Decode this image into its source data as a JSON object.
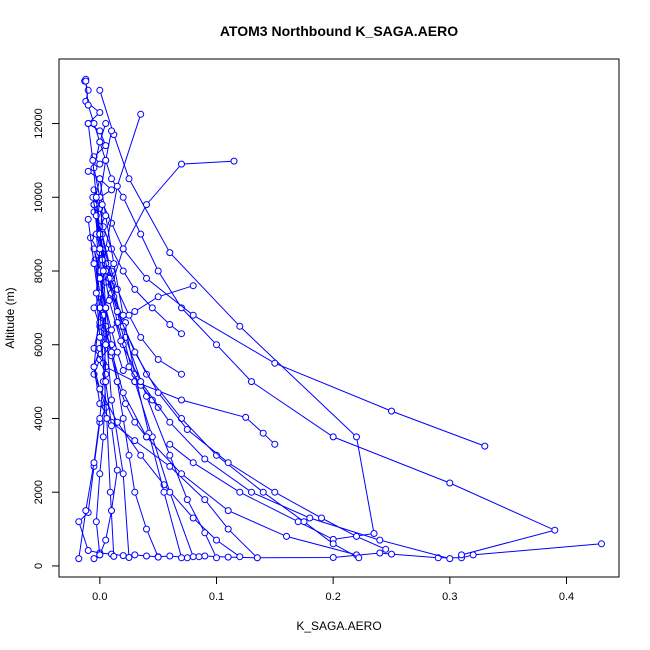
{
  "chart_data": {
    "type": "line",
    "title": "ATOM3 Northbound K_SAGA.AERO",
    "xlabel": "K_SAGA.AERO",
    "ylabel": "Altitude (m)",
    "xlim": [
      -0.035,
      0.445
    ],
    "ylim": [
      -300,
      13750
    ],
    "x_ticks": [
      0.0,
      0.1,
      0.2,
      0.3,
      0.4
    ],
    "x_tick_labels": [
      "0.0",
      "0.1",
      "0.2",
      "0.3",
      "0.4"
    ],
    "y_ticks": [
      0,
      2000,
      4000,
      6000,
      8000,
      10000,
      12000
    ],
    "y_tick_labels": [
      "0",
      "2000",
      "4000",
      "6000",
      "8000",
      "10000",
      "12000"
    ],
    "grid": false,
    "legend": "none",
    "color": "#0000ff",
    "marker": "open-circle",
    "series": [
      {
        "x": [
          0.43,
          0.32,
          0.31,
          0.29,
          0.25,
          0.24,
          0.2,
          0.135,
          0.11,
          0.09,
          0.085,
          0.075,
          0.06,
          0.05,
          0.04,
          0.03,
          0.02,
          0.01,
          0.0,
          -0.01,
          -0.018,
          -0.01,
          -0.005,
          0.0,
          0.005,
          0.0,
          -0.005,
          0.0,
          0.01,
          0.0,
          -0.005,
          0.0,
          0.005,
          0.01,
          0.0,
          -0.008,
          0.0,
          0.005,
          -0.005,
          0.0,
          0.01,
          0.0,
          -0.01,
          0.0,
          -0.005,
          0.005,
          0.0,
          -0.01,
          0.0,
          -0.012,
          -0.01,
          -0.013,
          -0.012
        ],
        "y": [
          600,
          300,
          220,
          220,
          320,
          350,
          230,
          220,
          240,
          270,
          250,
          220,
          270,
          250,
          270,
          300,
          280,
          320,
          350,
          420,
          1200,
          1450,
          2700,
          3900,
          4300,
          4800,
          5200,
          5600,
          6000,
          6500,
          7000,
          7300,
          7700,
          8000,
          8500,
          8900,
          9200,
          9500,
          9800,
          10000,
          10200,
          10500,
          10700,
          10900,
          11100,
          11400,
          11800,
          12000,
          12300,
          12600,
          12900,
          13150,
          13200
        ]
      },
      {
        "x": [
          -0.012,
          -0.01,
          -0.005,
          0.0,
          0.005,
          0.01,
          0.02,
          0.035,
          0.05,
          0.07,
          0.1,
          0.13,
          0.2,
          0.3,
          0.39,
          0.31
        ],
        "y": [
          13150,
          12500,
          12000,
          11500,
          11000,
          10500,
          10000,
          9000,
          8000,
          7000,
          6000,
          5000,
          3500,
          2250,
          970,
          300
        ]
      },
      {
        "x": [
          0.0,
          0.012,
          0.025,
          0.06,
          0.12,
          0.22,
          0.235,
          0.2,
          0.17,
          0.12,
          0.08,
          0.06
        ],
        "y": [
          12900,
          11700,
          10500,
          8500,
          6500,
          3500,
          880,
          720,
          1200,
          2000,
          2800,
          3300
        ]
      },
      {
        "x": [
          0.33,
          0.25,
          0.15,
          0.08,
          0.04,
          0.02,
          0.01,
          0.0,
          -0.005,
          0.0,
          0.005
        ],
        "y": [
          3250,
          4200,
          5500,
          6800,
          7800,
          8600,
          9300,
          10000,
          10800,
          11500,
          12000
        ]
      },
      {
        "x": [
          0.115,
          0.07,
          0.04,
          0.02,
          0.01,
          0.0,
          -0.005,
          0.005,
          0.03,
          0.07,
          0.125,
          0.14,
          0.15
        ],
        "y": [
          10980,
          10900,
          9800,
          8600,
          7600,
          6600,
          5900,
          5400,
          5000,
          4500,
          4030,
          3600,
          3300
        ]
      },
      {
        "x": [
          0.035,
          0.015,
          0.005,
          0.0,
          -0.005,
          0.0,
          0.01,
          0.03,
          0.06,
          0.09,
          0.11,
          0.135
        ],
        "y": [
          12250,
          10300,
          8600,
          7000,
          5400,
          4400,
          3900,
          3400,
          2700,
          1800,
          1000,
          220
        ]
      },
      {
        "x": [
          0.08,
          0.05,
          0.03,
          0.015,
          0.005,
          0.0,
          -0.005,
          0.0,
          0.015,
          0.035,
          0.055,
          0.08,
          0.1,
          0.12
        ],
        "y": [
          7600,
          7300,
          6900,
          6600,
          6300,
          5900,
          5400,
          4800,
          3900,
          3000,
          2200,
          1300,
          700,
          250
        ]
      },
      {
        "x": [
          0.07,
          0.06,
          0.045,
          0.03,
          0.02,
          0.01,
          0.003,
          0.0,
          -0.005,
          0.0,
          0.01,
          0.022,
          0.04,
          0.06,
          0.075,
          0.09,
          0.1
        ],
        "y": [
          6300,
          6550,
          7000,
          7500,
          8000,
          8600,
          9200,
          9700,
          10200,
          9200,
          7800,
          6200,
          4600,
          3000,
          1800,
          900,
          220
        ]
      },
      {
        "x": [
          0.07,
          0.05,
          0.035,
          0.025,
          0.015,
          0.008,
          0.002,
          -0.005,
          0.0,
          0.008,
          0.018,
          0.03,
          0.045,
          0.06,
          0.08
        ],
        "y": [
          5200,
          5600,
          6200,
          6800,
          7500,
          8200,
          9000,
          9600,
          9000,
          7800,
          6500,
          5000,
          3500,
          2000,
          250
        ]
      },
      {
        "x": [
          0.022,
          0.012,
          0.005,
          0.0,
          -0.005,
          0.0,
          0.005,
          0.012,
          0.02,
          0.03,
          0.042,
          0.055,
          0.07
        ],
        "y": [
          6600,
          7300,
          8000,
          8900,
          9800,
          10500,
          9500,
          8200,
          6800,
          5200,
          3600,
          2000,
          220
        ]
      },
      {
        "x": [
          0.01,
          0.005,
          0.0,
          -0.003,
          0.0,
          0.005,
          0.01,
          0.015,
          0.02,
          0.025,
          0.03,
          0.04,
          0.05
        ],
        "y": [
          11800,
          11000,
          10000,
          9000,
          8000,
          7000,
          6000,
          5000,
          4000,
          3000,
          2000,
          1000,
          240
        ]
      },
      {
        "x": [
          0.05,
          0.045,
          0.035,
          0.025,
          0.02,
          0.015,
          0.01,
          0.005,
          0.0,
          -0.005,
          0.0,
          0.005,
          0.01,
          0.02,
          0.025
        ],
        "y": [
          4300,
          4500,
          4900,
          5400,
          6000,
          6600,
          7400,
          8200,
          9000,
          9800,
          8500,
          6500,
          4500,
          2500,
          230
        ]
      },
      {
        "x": [
          0.04,
          0.03,
          0.022,
          0.015,
          0.01,
          0.005,
          0.0,
          -0.004,
          0.0,
          0.003,
          0.006,
          0.009,
          0.012
        ],
        "y": [
          3500,
          3900,
          4400,
          5000,
          5700,
          6500,
          7400,
          8300,
          7000,
          5500,
          4000,
          2000,
          260
        ]
      },
      {
        "x": [
          0.02,
          0.015,
          0.01,
          0.005,
          0.0,
          -0.005,
          0.0,
          0.003,
          0.005,
          0.003,
          0.0,
          -0.003,
          0.0
        ],
        "y": [
          5300,
          5800,
          6400,
          7000,
          7800,
          8600,
          8000,
          6800,
          5200,
          3500,
          2500,
          1200,
          300
        ]
      },
      {
        "x": [
          0.22,
          0.16,
          0.11,
          0.07,
          0.04,
          0.02,
          0.01,
          0.0,
          -0.005,
          -0.01
        ],
        "y": [
          300,
          800,
          1500,
          2500,
          3500,
          4700,
          5800,
          7000,
          8200,
          9400
        ]
      },
      {
        "x": [
          0.222,
          0.2,
          0.175,
          0.14,
          0.1,
          0.07,
          0.04,
          0.02,
          0.008,
          0.0,
          -0.006
        ],
        "y": [
          220,
          600,
          1200,
          2000,
          3000,
          4000,
          5200,
          6500,
          7800,
          9000,
          10000
        ]
      },
      {
        "x": [
          0.245,
          0.22,
          0.19,
          0.15,
          0.11,
          0.075,
          0.05,
          0.03,
          0.015,
          0.005,
          0.0
        ],
        "y": [
          450,
          800,
          1300,
          2000,
          2800,
          3700,
          4700,
          5800,
          6900,
          8000,
          9000
        ]
      },
      {
        "x": [
          0.3,
          0.24,
          0.18,
          0.13,
          0.09,
          0.06,
          0.035,
          0.018,
          0.008,
          0.002,
          -0.003
        ],
        "y": [
          200,
          700,
          1300,
          2000,
          2900,
          3900,
          5000,
          6100,
          7200,
          8300,
          9500
        ]
      },
      {
        "x": [
          -0.018,
          -0.012,
          -0.005,
          0.0,
          0.003,
          0.005,
          0.005,
          0.003,
          0.0,
          -0.003,
          -0.006,
          -0.01
        ],
        "y": [
          200,
          1500,
          2800,
          4000,
          5000,
          6000,
          7000,
          8000,
          9000,
          10000,
          11000,
          12000
        ]
      },
      {
        "x": [
          -0.005,
          0.0,
          0.005,
          0.01,
          0.015,
          0.01,
          0.005,
          0.0,
          -0.003,
          0.0,
          0.002
        ],
        "y": [
          200,
          300,
          700,
          1500,
          2600,
          3800,
          5000,
          6200,
          7400,
          8600,
          9800
        ]
      }
    ]
  }
}
